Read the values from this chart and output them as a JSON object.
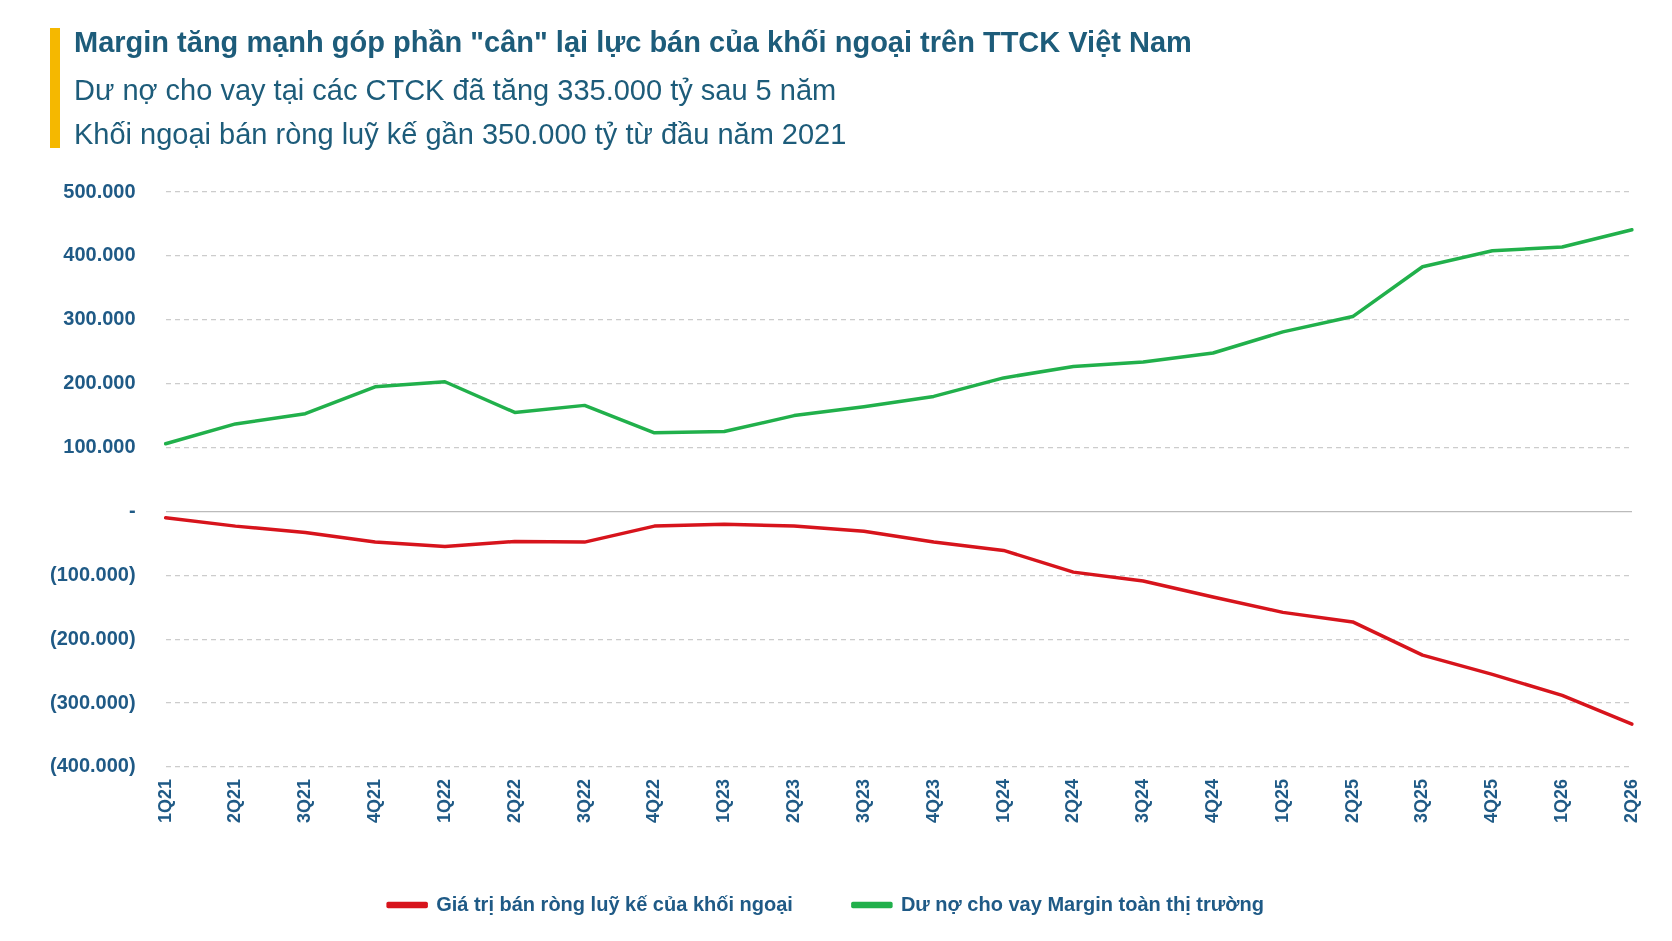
{
  "chart_data": {
    "type": "line",
    "title": "Margin tăng mạnh góp phần \"cân\" lại lực bán của khối ngoại trên TTCK Việt Nam",
    "subtitle": "Dư nợ cho vay tại các CTCK đã tăng 335.000 tỷ sau 5 năm\nKhối ngoại bán ròng luỹ kế gần 350.000 tỷ từ đầu năm 2021",
    "categories": [
      "1Q21",
      "2Q21",
      "3Q21",
      "4Q21",
      "1Q22",
      "2Q22",
      "3Q22",
      "4Q22",
      "1Q23",
      "2Q23",
      "3Q23",
      "4Q23",
      "1Q24",
      "2Q24",
      "3Q24",
      "4Q24",
      "1Q25",
      "2Q25",
      "3Q25",
      "4Q25",
      "1Q26",
      "2Q26"
    ],
    "series": [
      {
        "name": "Giá trị bán ròng luỹ kế của khối ngoại",
        "color": "#d7141c",
        "values": [
          -10000,
          -23000,
          -33000,
          -48000,
          -55000,
          -47000,
          -48000,
          -23000,
          -20000,
          -23000,
          -31000,
          -48000,
          -61000,
          -95000,
          -109000,
          -134000,
          -158000,
          -173000,
          -225000,
          -255000,
          -288000,
          -333000
        ]
      },
      {
        "name": "Dư nợ cho vay Margin toàn thị trường",
        "color": "#21b04b",
        "values": [
          106000,
          137000,
          153000,
          195000,
          203000,
          155000,
          166000,
          123000,
          125000,
          150000,
          164000,
          180000,
          209000,
          227000,
          234000,
          248000,
          281000,
          305000,
          383000,
          408000,
          414000,
          441000
        ]
      }
    ],
    "ylim": [
      -400000,
      500000
    ],
    "yticks": [
      {
        "value": -400000,
        "label": "(400.000)"
      },
      {
        "value": -300000,
        "label": "(300.000)"
      },
      {
        "value": -200000,
        "label": "(200.000)"
      },
      {
        "value": -100000,
        "label": "(100.000)"
      },
      {
        "value": 0,
        "label": "-"
      },
      {
        "value": 100000,
        "label": "100.000"
      },
      {
        "value": 200000,
        "label": "200.000"
      },
      {
        "value": 300000,
        "label": "300.000"
      },
      {
        "value": 400000,
        "label": "400.000"
      },
      {
        "value": 500000,
        "label": "500.000"
      }
    ],
    "grid": "y",
    "legend": "bottom",
    "marker": "none",
    "line_style": "solid"
  }
}
